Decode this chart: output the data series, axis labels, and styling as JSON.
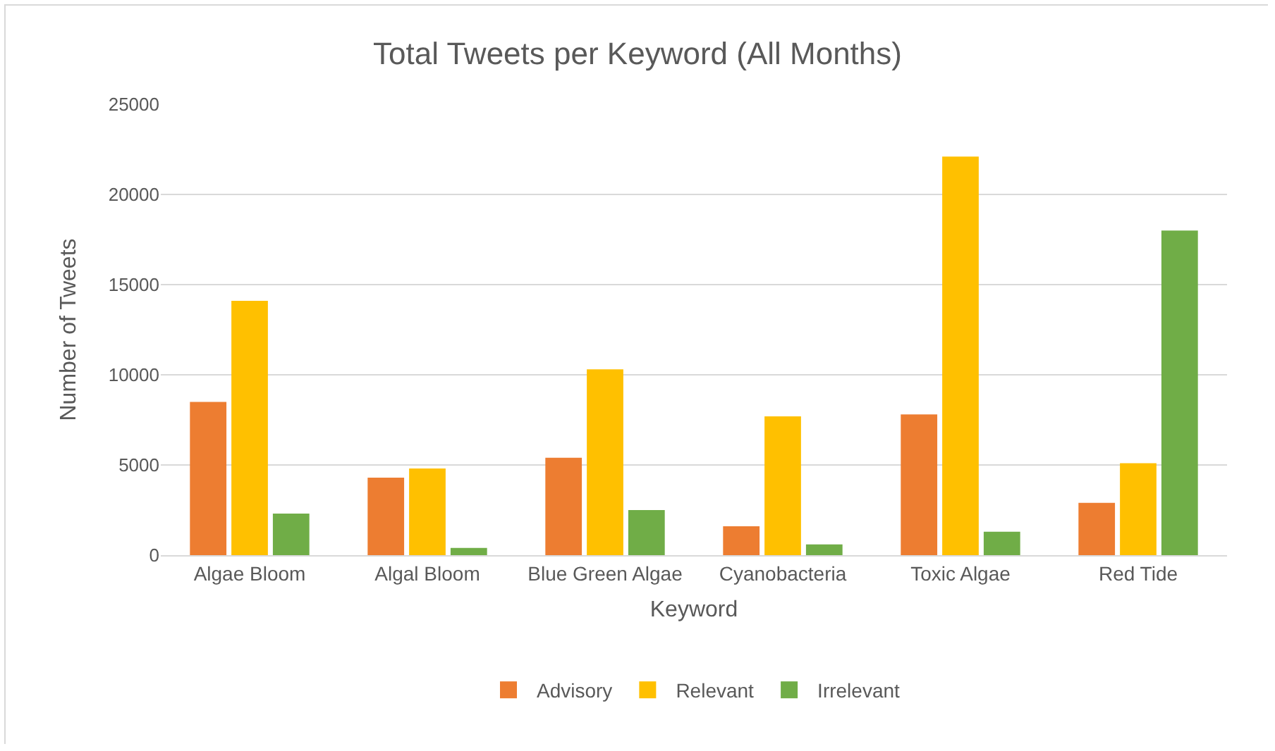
{
  "chart_data": {
    "type": "bar",
    "title": "Total Tweets per Keyword (All Months)",
    "xlabel": "Keyword",
    "ylabel": "Number of Tweets",
    "categories": [
      "Algae Bloom",
      "Algal Bloom",
      "Blue Green Algae",
      "Cyanobacteria",
      "Toxic Algae",
      "Red Tide"
    ],
    "series": [
      {
        "name": "Advisory",
        "color": "#ed7d31",
        "values": [
          8500,
          4300,
          5400,
          1600,
          7800,
          2900
        ]
      },
      {
        "name": "Relevant",
        "color": "#ffc000",
        "values": [
          14100,
          4800,
          10300,
          7700,
          22100,
          5100
        ]
      },
      {
        "name": "Irrelevant",
        "color": "#70ad47",
        "values": [
          2300,
          400,
          2500,
          600,
          1300,
          18000
        ]
      }
    ],
    "ylim": [
      0,
      25000
    ],
    "yticks": [
      0,
      5000,
      10000,
      15000,
      20000,
      25000
    ],
    "grid": "y",
    "legend": "bottom"
  }
}
